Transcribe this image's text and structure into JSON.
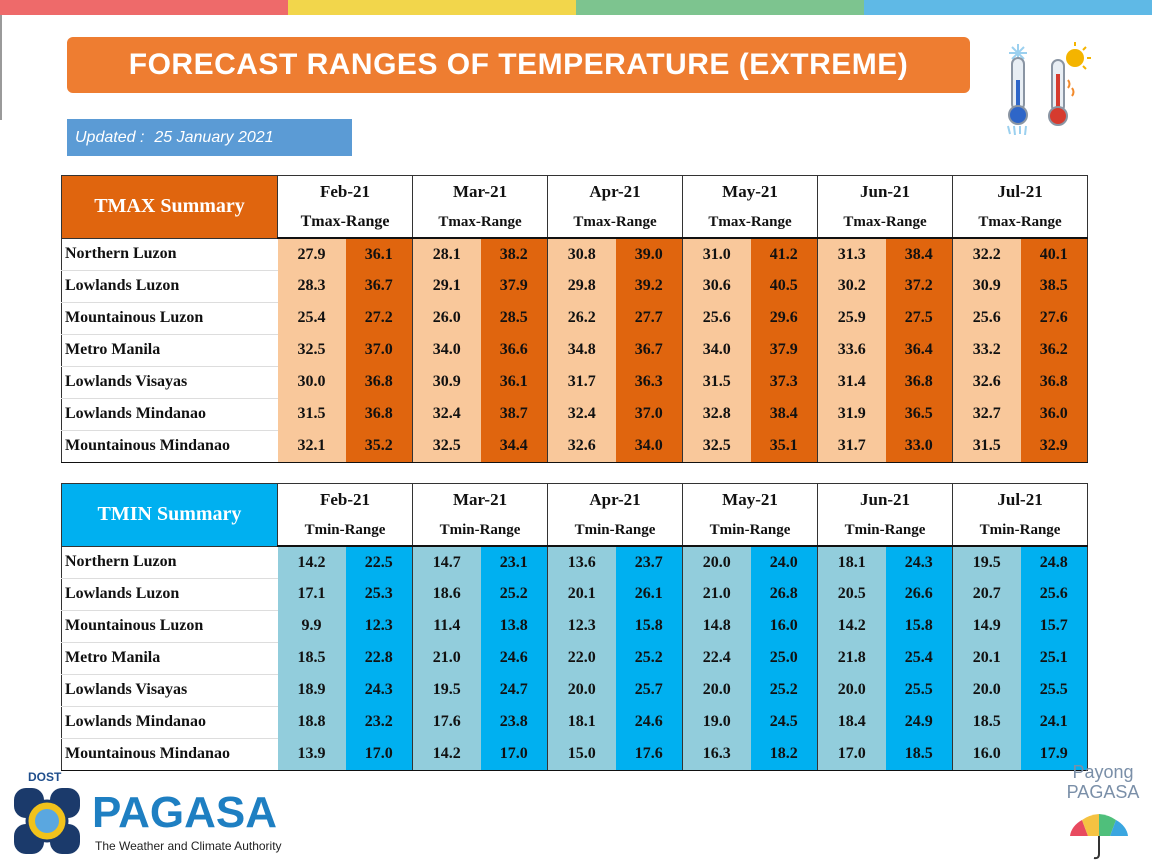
{
  "title": "FORECAST RANGES OF TEMPERATURE (EXTREME)",
  "updated": {
    "label": "Updated :",
    "date": "25 January 2021"
  },
  "top_bar_colors": [
    "#ee6a6a",
    "#f2d64b",
    "#7dc48f",
    "#5fb9e6"
  ],
  "months": [
    "Feb-21",
    "Mar-21",
    "Apr-21",
    "May-21",
    "Jun-21",
    "Jul-21"
  ],
  "regions": [
    "Northern Luzon",
    "Lowlands Luzon",
    "Mountainous Luzon",
    "Metro Manila",
    "Lowlands Visayas",
    "Lowlands Mindanao",
    "Mountainous Mindanao"
  ],
  "tmax": {
    "title": "TMAX Summary",
    "range_label": "Tmax-Range",
    "rows": [
      [
        [
          "27.9",
          "36.1"
        ],
        [
          "28.1",
          "38.2"
        ],
        [
          "30.8",
          "39.0"
        ],
        [
          "31.0",
          "41.2"
        ],
        [
          "31.3",
          "38.4"
        ],
        [
          "32.2",
          "40.1"
        ]
      ],
      [
        [
          "28.3",
          "36.7"
        ],
        [
          "29.1",
          "37.9"
        ],
        [
          "29.8",
          "39.2"
        ],
        [
          "30.6",
          "40.5"
        ],
        [
          "30.2",
          "37.2"
        ],
        [
          "30.9",
          "38.5"
        ]
      ],
      [
        [
          "25.4",
          "27.2"
        ],
        [
          "26.0",
          "28.5"
        ],
        [
          "26.2",
          "27.7"
        ],
        [
          "25.6",
          "29.6"
        ],
        [
          "25.9",
          "27.5"
        ],
        [
          "25.6",
          "27.6"
        ]
      ],
      [
        [
          "32.5",
          "37.0"
        ],
        [
          "34.0",
          "36.6"
        ],
        [
          "34.8",
          "36.7"
        ],
        [
          "34.0",
          "37.9"
        ],
        [
          "33.6",
          "36.4"
        ],
        [
          "33.2",
          "36.2"
        ]
      ],
      [
        [
          "30.0",
          "36.8"
        ],
        [
          "30.9",
          "36.1"
        ],
        [
          "31.7",
          "36.3"
        ],
        [
          "31.5",
          "37.3"
        ],
        [
          "31.4",
          "36.8"
        ],
        [
          "32.6",
          "36.8"
        ]
      ],
      [
        [
          "31.5",
          "36.8"
        ],
        [
          "32.4",
          "38.7"
        ],
        [
          "32.4",
          "37.0"
        ],
        [
          "32.8",
          "38.4"
        ],
        [
          "31.9",
          "36.5"
        ],
        [
          "32.7",
          "36.0"
        ]
      ],
      [
        [
          "32.1",
          "35.2"
        ],
        [
          "32.5",
          "34.4"
        ],
        [
          "32.6",
          "34.0"
        ],
        [
          "32.5",
          "35.1"
        ],
        [
          "31.7",
          "33.0"
        ],
        [
          "31.5",
          "32.9"
        ]
      ]
    ]
  },
  "tmin": {
    "title": "TMIN Summary",
    "range_label": "Tmin-Range",
    "rows": [
      [
        [
          "14.2",
          "22.5"
        ],
        [
          "14.7",
          "23.1"
        ],
        [
          "13.6",
          "23.7"
        ],
        [
          "20.0",
          "24.0"
        ],
        [
          "18.1",
          "24.3"
        ],
        [
          "19.5",
          "24.8"
        ]
      ],
      [
        [
          "17.1",
          "25.3"
        ],
        [
          "18.6",
          "25.2"
        ],
        [
          "20.1",
          "26.1"
        ],
        [
          "21.0",
          "26.8"
        ],
        [
          "20.5",
          "26.6"
        ],
        [
          "20.7",
          "25.6"
        ]
      ],
      [
        [
          "9.9",
          "12.3"
        ],
        [
          "11.4",
          "13.8"
        ],
        [
          "12.3",
          "15.8"
        ],
        [
          "14.8",
          "16.0"
        ],
        [
          "14.2",
          "15.8"
        ],
        [
          "14.9",
          "15.7"
        ]
      ],
      [
        [
          "18.5",
          "22.8"
        ],
        [
          "21.0",
          "24.6"
        ],
        [
          "22.0",
          "25.2"
        ],
        [
          "22.4",
          "25.0"
        ],
        [
          "21.8",
          "25.4"
        ],
        [
          "20.1",
          "25.1"
        ]
      ],
      [
        [
          "18.9",
          "24.3"
        ],
        [
          "19.5",
          "24.7"
        ],
        [
          "20.0",
          "25.7"
        ],
        [
          "20.0",
          "25.2"
        ],
        [
          "20.0",
          "25.5"
        ],
        [
          "20.0",
          "25.5"
        ]
      ],
      [
        [
          "18.8",
          "23.2"
        ],
        [
          "17.6",
          "23.8"
        ],
        [
          "18.1",
          "24.6"
        ],
        [
          "19.0",
          "24.5"
        ],
        [
          "18.4",
          "24.9"
        ],
        [
          "18.5",
          "24.1"
        ]
      ],
      [
        [
          "13.9",
          "17.0"
        ],
        [
          "14.2",
          "17.0"
        ],
        [
          "15.0",
          "17.6"
        ],
        [
          "16.3",
          "18.2"
        ],
        [
          "17.0",
          "18.5"
        ],
        [
          "16.0",
          "17.9"
        ]
      ]
    ]
  },
  "footer": {
    "dost": "DOST",
    "pagasa": "PAGASA",
    "tagline": "The Weather and Climate Authority",
    "payong_line1": "Payong",
    "payong_line2": "PAGASA"
  },
  "icons": [
    "thermometer-cold-hot-icon",
    "pagasa-seal-logo",
    "umbrella-icon"
  ]
}
